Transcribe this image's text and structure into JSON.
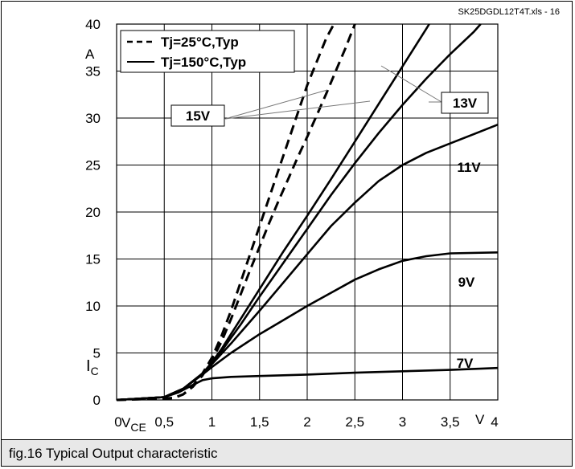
{
  "caption": "fig.16 Typical Output characteristic",
  "file_label": "SK25DGDL12T4T.xls - 16",
  "colors": {
    "curves": "#000000",
    "grid": "#000000",
    "caption_bg": "#e8e8e8"
  },
  "chart_data": {
    "type": "line",
    "title": "",
    "xlabel": "V",
    "xlabel_sub": "CE",
    "x_unit": "V",
    "ylabel": "I",
    "ylabel_sub": "C",
    "y_unit": "A",
    "xlim": [
      0,
      4
    ],
    "ylim": [
      0,
      40
    ],
    "grid": true,
    "x_ticks": [
      {
        "value": 0,
        "label": "0"
      },
      {
        "value": 0.5,
        "label": "0,5"
      },
      {
        "value": 1,
        "label": "1"
      },
      {
        "value": 1.5,
        "label": "1,5"
      },
      {
        "value": 2,
        "label": "2"
      },
      {
        "value": 2.5,
        "label": "2,5"
      },
      {
        "value": 3,
        "label": "3"
      },
      {
        "value": 3.5,
        "label": "3,5"
      },
      {
        "value": 4,
        "label": "4"
      }
    ],
    "y_ticks": [
      {
        "value": 0,
        "label": "0"
      },
      {
        "value": 5,
        "label": "5"
      },
      {
        "value": 10,
        "label": "10"
      },
      {
        "value": 15,
        "label": "15"
      },
      {
        "value": 20,
        "label": "20"
      },
      {
        "value": 25,
        "label": "25"
      },
      {
        "value": 30,
        "label": "30"
      },
      {
        "value": 35,
        "label": "35"
      },
      {
        "value": 40,
        "label": "40"
      }
    ],
    "legend": {
      "placement": "top-left",
      "entries": [
        {
          "label": "Tj=25°C,Typ",
          "style": "dashed"
        },
        {
          "label": "Tj=150°C,Typ",
          "style": "solid"
        }
      ]
    },
    "series": [
      {
        "gate_voltage": "15V",
        "temperature": "Tj=25°C,Typ",
        "style": "dashed",
        "points": [
          [
            0,
            0
          ],
          [
            0.6,
            0.2
          ],
          [
            0.7,
            0.6
          ],
          [
            0.8,
            1.5
          ],
          [
            0.9,
            2.8
          ],
          [
            1.0,
            4.5
          ],
          [
            1.1,
            6.8
          ],
          [
            1.2,
            9.5
          ],
          [
            1.3,
            12.5
          ],
          [
            1.4,
            15.5
          ],
          [
            1.5,
            18.5
          ],
          [
            1.6,
            21.5
          ],
          [
            1.7,
            24.5
          ],
          [
            1.8,
            27.5
          ],
          [
            1.9,
            30.5
          ],
          [
            2.0,
            33.5
          ],
          [
            2.1,
            36
          ],
          [
            2.2,
            38.5
          ],
          [
            2.28,
            40
          ]
        ]
      },
      {
        "gate_voltage": "13V",
        "temperature": "Tj=25°C,Typ",
        "style": "dashed",
        "points": [
          [
            0,
            0
          ],
          [
            0.6,
            0.2
          ],
          [
            0.7,
            0.6
          ],
          [
            0.8,
            1.4
          ],
          [
            0.9,
            2.6
          ],
          [
            1.0,
            4.2
          ],
          [
            1.1,
            6.2
          ],
          [
            1.2,
            8.6
          ],
          [
            1.3,
            11.2
          ],
          [
            1.4,
            13.8
          ],
          [
            1.5,
            16.3
          ],
          [
            1.6,
            18.8
          ],
          [
            1.7,
            21.2
          ],
          [
            1.8,
            23.5
          ],
          [
            1.9,
            25.8
          ],
          [
            2.0,
            28
          ],
          [
            2.1,
            30.3
          ],
          [
            2.2,
            32.6
          ],
          [
            2.3,
            35
          ],
          [
            2.4,
            37.4
          ],
          [
            2.5,
            40
          ]
        ]
      },
      {
        "gate_voltage": "15V",
        "temperature": "Tj=150°C,Typ",
        "style": "solid",
        "points": [
          [
            0,
            0
          ],
          [
            0.5,
            0.3
          ],
          [
            0.7,
            1.2
          ],
          [
            0.9,
            2.8
          ],
          [
            1.0,
            4.0
          ],
          [
            1.1,
            5.4
          ],
          [
            1.2,
            7.0
          ],
          [
            1.3,
            8.6
          ],
          [
            1.5,
            11.8
          ],
          [
            1.75,
            15.8
          ],
          [
            2.0,
            19.6
          ],
          [
            2.25,
            23.5
          ],
          [
            2.5,
            27.5
          ],
          [
            2.75,
            31.5
          ],
          [
            3.0,
            35.5
          ],
          [
            3.25,
            39.5
          ],
          [
            3.28,
            40
          ]
        ]
      },
      {
        "gate_voltage": "13V",
        "temperature": "Tj=150°C,Typ",
        "style": "solid",
        "points": [
          [
            0,
            0
          ],
          [
            0.5,
            0.3
          ],
          [
            0.7,
            1.2
          ],
          [
            0.9,
            2.8
          ],
          [
            1.0,
            3.9
          ],
          [
            1.1,
            5.2
          ],
          [
            1.2,
            6.6
          ],
          [
            1.3,
            8.0
          ],
          [
            1.5,
            11.0
          ],
          [
            1.75,
            14.6
          ],
          [
            2.0,
            18.2
          ],
          [
            2.25,
            21.8
          ],
          [
            2.5,
            25.2
          ],
          [
            2.75,
            28.4
          ],
          [
            3.0,
            31.4
          ],
          [
            3.25,
            34.2
          ],
          [
            3.5,
            36.8
          ],
          [
            3.75,
            39.2
          ],
          [
            3.82,
            40
          ]
        ]
      },
      {
        "gate_voltage": "11V",
        "temperature": "Tj=150°C,Typ",
        "style": "solid",
        "points": [
          [
            0,
            0
          ],
          [
            0.5,
            0.3
          ],
          [
            0.7,
            1.2
          ],
          [
            0.9,
            2.8
          ],
          [
            1.0,
            3.8
          ],
          [
            1.2,
            6.0
          ],
          [
            1.5,
            9.5
          ],
          [
            1.75,
            12.5
          ],
          [
            2.0,
            15.5
          ],
          [
            2.25,
            18.5
          ],
          [
            2.5,
            21.0
          ],
          [
            2.75,
            23.3
          ],
          [
            3.0,
            25.0
          ],
          [
            3.25,
            26.3
          ],
          [
            3.5,
            27.3
          ],
          [
            3.75,
            28.3
          ],
          [
            4.0,
            29.3
          ]
        ]
      },
      {
        "gate_voltage": "9V",
        "temperature": "Tj=150°C,Typ",
        "style": "solid",
        "points": [
          [
            0,
            0
          ],
          [
            0.5,
            0.3
          ],
          [
            0.7,
            1.2
          ],
          [
            0.9,
            2.7
          ],
          [
            1.0,
            3.5
          ],
          [
            1.2,
            5.0
          ],
          [
            1.5,
            7.0
          ],
          [
            1.75,
            8.5
          ],
          [
            2.0,
            10.0
          ],
          [
            2.25,
            11.4
          ],
          [
            2.5,
            12.8
          ],
          [
            2.75,
            13.9
          ],
          [
            3.0,
            14.8
          ],
          [
            3.25,
            15.3
          ],
          [
            3.5,
            15.6
          ],
          [
            4.0,
            15.7
          ]
        ]
      },
      {
        "gate_voltage": "7V",
        "temperature": "Tj=150°C,Typ",
        "style": "solid",
        "points": [
          [
            0,
            0
          ],
          [
            0.5,
            0.3
          ],
          [
            0.65,
            0.8
          ],
          [
            0.8,
            1.6
          ],
          [
            0.9,
            2.1
          ],
          [
            1.0,
            2.3
          ],
          [
            1.2,
            2.45
          ],
          [
            1.5,
            2.55
          ],
          [
            2.0,
            2.7
          ],
          [
            2.5,
            2.9
          ],
          [
            3.0,
            3.05
          ],
          [
            3.5,
            3.2
          ],
          [
            4.0,
            3.4
          ]
        ]
      }
    ],
    "annotations": [
      {
        "text": "15V",
        "boxed": true,
        "points_to": [
          "15V Tj=25°C",
          "15V Tj=150°C"
        ]
      },
      {
        "text": "13V",
        "boxed": true,
        "points_to": [
          "13V Tj=25°C",
          "13V Tj=150°C"
        ]
      },
      {
        "text": "11V",
        "boxed": false
      },
      {
        "text": "9V",
        "boxed": false
      },
      {
        "text": "7V",
        "boxed": false
      }
    ]
  }
}
